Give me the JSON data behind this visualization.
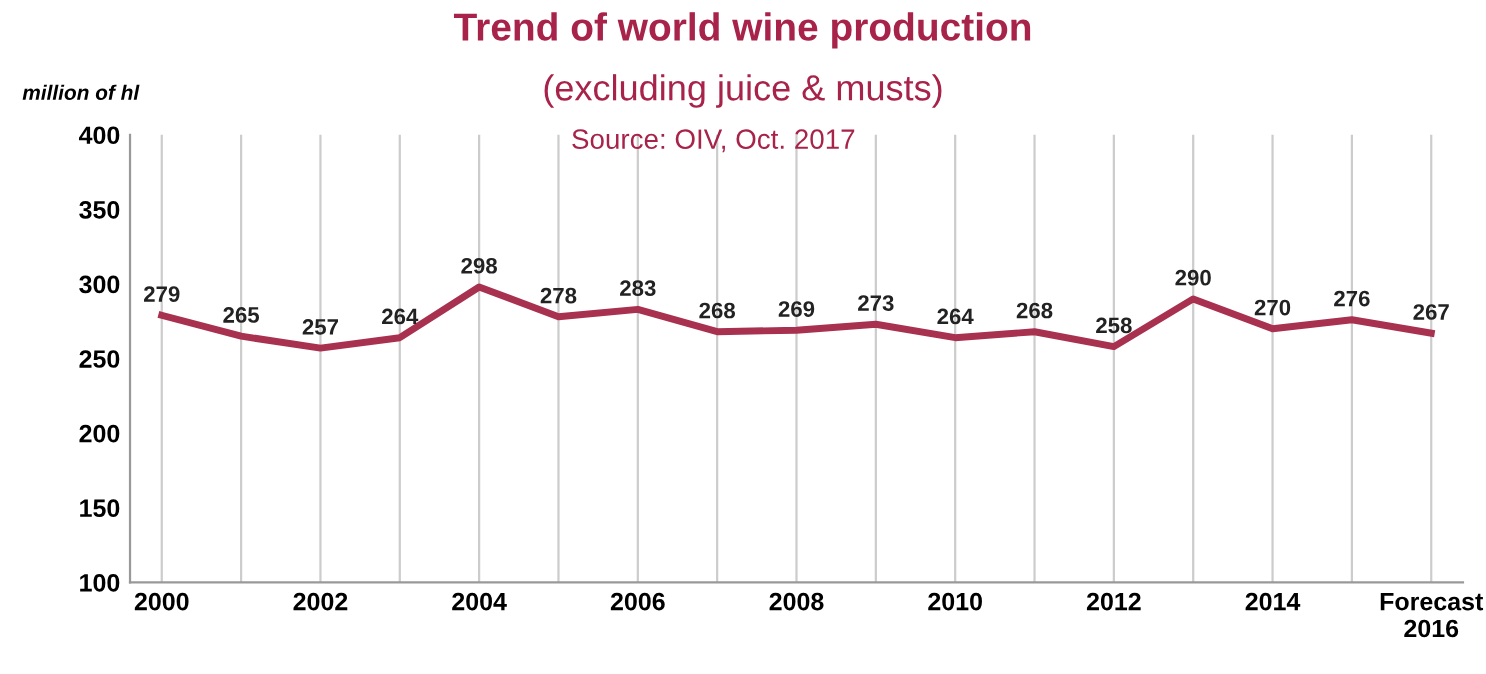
{
  "chart_data": {
    "type": "line",
    "title": "Trend of world wine production",
    "subtitle": "(excluding juice & musts)",
    "ylabel": "million of hl",
    "annotations": [
      "Source: OIV, Oct. 2017"
    ],
    "categories": [
      "2000",
      null,
      "2002",
      null,
      "2004",
      null,
      "2006",
      null,
      "2008",
      null,
      "2010",
      null,
      "2012",
      null,
      "2014",
      null,
      "Forecast\n2016"
    ],
    "series": [
      {
        "color": "#a8314f",
        "values": [
          279,
          265,
          257,
          264,
          298,
          278,
          283,
          268,
          269,
          273,
          264,
          268,
          258,
          290,
          270,
          276,
          267
        ]
      }
    ],
    "ylim": [
      100,
      400
    ],
    "yticks": [
      100,
      150,
      200,
      250,
      300,
      350,
      400
    ],
    "grid": "x",
    "data_labels": true,
    "marker": "none",
    "line_style": "solid",
    "legend": false
  }
}
